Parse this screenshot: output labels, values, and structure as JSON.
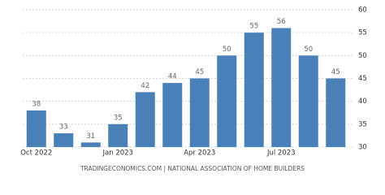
{
  "chart_data": {
    "type": "bar",
    "categories": [
      "Oct 2022",
      null,
      null,
      "Jan 2023",
      null,
      null,
      "Apr 2023",
      null,
      null,
      "Jul 2023",
      null,
      null
    ],
    "values": [
      38,
      33,
      31,
      35,
      42,
      44,
      45,
      50,
      55,
      56,
      50,
      45
    ],
    "color": "#4a80b8",
    "ylim": [
      30,
      60
    ],
    "yticks": [
      30,
      35,
      40,
      45,
      50,
      55,
      60
    ],
    "grid": true,
    "source": "TRADINGECONOMICS.COM | NATIONAL ASSOCIATION OF HOME BUILDERS"
  }
}
